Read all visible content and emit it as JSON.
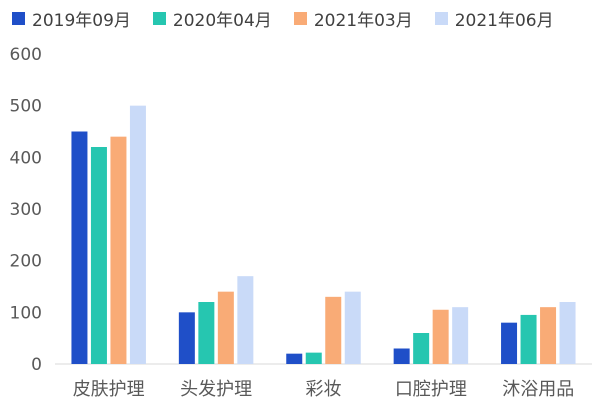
{
  "chart_data": {
    "type": "bar",
    "categories": [
      "皮肤护理",
      "头发护理",
      "彩妆",
      "口腔护理",
      "沐浴用品"
    ],
    "series": [
      {
        "name": "2019年09月",
        "color": "#1f4fc8",
        "values": [
          450,
          100,
          20,
          30,
          80
        ]
      },
      {
        "name": "2020年04月",
        "color": "#26c6b0",
        "values": [
          420,
          120,
          22,
          60,
          95
        ]
      },
      {
        "name": "2021年03月",
        "color": "#f9ab76",
        "values": [
          440,
          140,
          130,
          105,
          110
        ]
      },
      {
        "name": "2021年06月",
        "color": "#c9daf8",
        "values": [
          500,
          170,
          140,
          110,
          120
        ]
      }
    ],
    "ylim": [
      0,
      600
    ],
    "yticks": [
      0,
      100,
      200,
      300,
      400,
      500,
      600
    ],
    "grid": false,
    "legend_position": "top-left"
  }
}
